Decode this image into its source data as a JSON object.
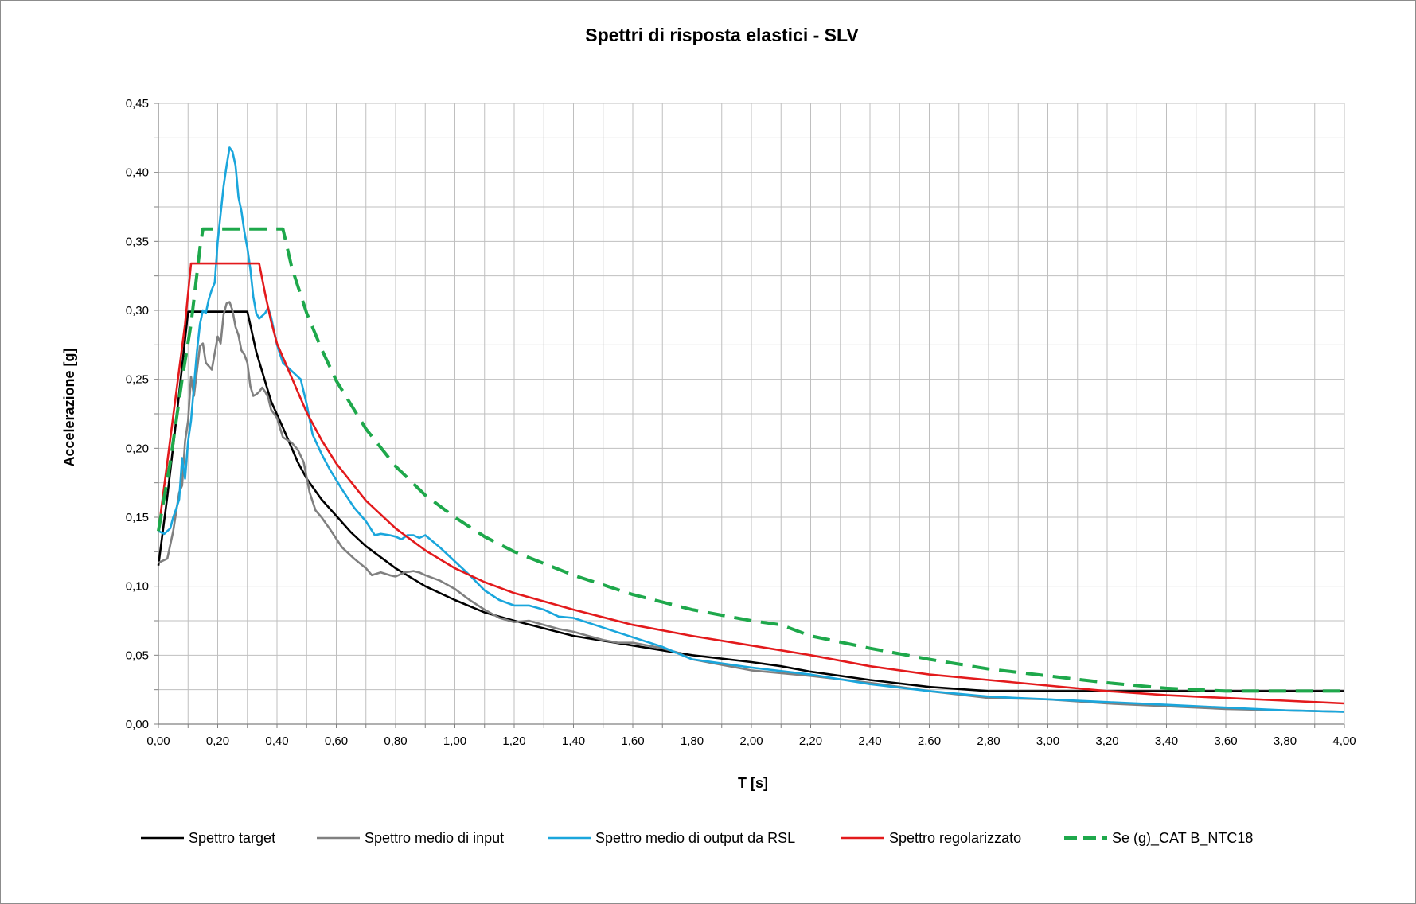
{
  "chart_data": {
    "type": "line",
    "title": "Spettri di risposta elastici  - SLV",
    "xlabel": "T [s]",
    "ylabel": "Accelerazione [g]",
    "xlim": [
      0,
      4
    ],
    "ylim": [
      0,
      0.45
    ],
    "x_ticks": [
      "0,00",
      "0,20",
      "0,40",
      "0,60",
      "0,80",
      "1,00",
      "1,20",
      "1,40",
      "1,60",
      "1,80",
      "2,00",
      "2,20",
      "2,40",
      "2,60",
      "2,80",
      "3,00",
      "3,20",
      "3,40",
      "3,60",
      "3,80",
      "4,00"
    ],
    "y_ticks": [
      "0,00",
      "0,05",
      "0,10",
      "0,15",
      "0,20",
      "0,25",
      "0,30",
      "0,35",
      "0,40",
      "0,45"
    ],
    "x_tick_values": [
      0,
      0.2,
      0.4,
      0.6,
      0.8,
      1.0,
      1.2,
      1.4,
      1.6,
      1.8,
      2.0,
      2.2,
      2.4,
      2.6,
      2.8,
      3.0,
      3.2,
      3.4,
      3.6,
      3.8,
      4.0
    ],
    "y_tick_values": [
      0,
      0.05,
      0.1,
      0.15,
      0.2,
      0.25,
      0.3,
      0.35,
      0.4,
      0.45
    ],
    "grid": true,
    "legend_position": "bottom",
    "series": [
      {
        "name": "Spettro target",
        "color": "#000000",
        "dash": "solid",
        "x": [
          0.0,
          0.03,
          0.06,
          0.1,
          0.3,
          0.33,
          0.38,
          0.42,
          0.47,
          0.5,
          0.55,
          0.6,
          0.65,
          0.7,
          0.8,
          0.9,
          1.0,
          1.1,
          1.2,
          1.4,
          1.6,
          1.8,
          2.0,
          2.1,
          2.2,
          2.4,
          2.6,
          2.8,
          3.0,
          3.2,
          3.4,
          3.6,
          3.8,
          4.0
        ],
        "y": [
          0.115,
          0.165,
          0.22,
          0.299,
          0.299,
          0.27,
          0.234,
          0.215,
          0.19,
          0.178,
          0.163,
          0.151,
          0.139,
          0.129,
          0.113,
          0.1,
          0.09,
          0.081,
          0.075,
          0.064,
          0.057,
          0.05,
          0.045,
          0.042,
          0.038,
          0.032,
          0.027,
          0.024,
          0.024,
          0.024,
          0.024,
          0.024,
          0.024,
          0.024
        ]
      },
      {
        "name": "Spettro medio di input",
        "color": "#808080",
        "dash": "solid",
        "x": [
          0.0,
          0.03,
          0.05,
          0.07,
          0.08,
          0.09,
          0.1,
          0.11,
          0.12,
          0.13,
          0.14,
          0.15,
          0.16,
          0.18,
          0.2,
          0.21,
          0.22,
          0.23,
          0.24,
          0.25,
          0.26,
          0.27,
          0.28,
          0.29,
          0.3,
          0.31,
          0.32,
          0.33,
          0.34,
          0.35,
          0.36,
          0.37,
          0.38,
          0.4,
          0.42,
          0.45,
          0.47,
          0.49,
          0.51,
          0.53,
          0.55,
          0.58,
          0.62,
          0.66,
          0.7,
          0.72,
          0.75,
          0.78,
          0.8,
          0.83,
          0.86,
          0.88,
          0.9,
          0.95,
          1.0,
          1.05,
          1.1,
          1.15,
          1.2,
          1.25,
          1.3,
          1.35,
          1.4,
          1.45,
          1.5,
          1.55,
          1.6,
          1.65,
          1.7,
          1.75,
          1.8,
          1.9,
          2.0,
          2.2,
          2.4,
          2.6,
          2.8,
          3.0,
          3.2,
          3.4,
          3.6,
          3.8,
          4.0
        ],
        "y": [
          0.117,
          0.12,
          0.14,
          0.168,
          0.173,
          0.205,
          0.22,
          0.252,
          0.238,
          0.256,
          0.274,
          0.276,
          0.262,
          0.257,
          0.281,
          0.276,
          0.297,
          0.305,
          0.306,
          0.3,
          0.288,
          0.282,
          0.271,
          0.268,
          0.262,
          0.245,
          0.238,
          0.239,
          0.241,
          0.244,
          0.241,
          0.237,
          0.228,
          0.222,
          0.208,
          0.204,
          0.199,
          0.19,
          0.168,
          0.155,
          0.15,
          0.141,
          0.128,
          0.12,
          0.113,
          0.108,
          0.11,
          0.108,
          0.107,
          0.11,
          0.111,
          0.11,
          0.108,
          0.104,
          0.098,
          0.09,
          0.083,
          0.077,
          0.074,
          0.075,
          0.072,
          0.069,
          0.067,
          0.064,
          0.061,
          0.059,
          0.059,
          0.057,
          0.055,
          0.052,
          0.047,
          0.043,
          0.039,
          0.035,
          0.03,
          0.024,
          0.019,
          0.018,
          0.015,
          0.013,
          0.011,
          0.01,
          0.009
        ]
      },
      {
        "name": "Spettro medio di output da RSL",
        "color": "#1aa6dc",
        "dash": "solid",
        "x": [
          0.0,
          0.02,
          0.04,
          0.05,
          0.06,
          0.07,
          0.08,
          0.09,
          0.1,
          0.11,
          0.12,
          0.13,
          0.14,
          0.15,
          0.16,
          0.17,
          0.18,
          0.19,
          0.2,
          0.21,
          0.22,
          0.23,
          0.24,
          0.25,
          0.26,
          0.27,
          0.28,
          0.29,
          0.3,
          0.31,
          0.32,
          0.33,
          0.34,
          0.35,
          0.36,
          0.37,
          0.38,
          0.4,
          0.42,
          0.45,
          0.48,
          0.5,
          0.52,
          0.55,
          0.58,
          0.62,
          0.66,
          0.7,
          0.73,
          0.75,
          0.78,
          0.8,
          0.82,
          0.84,
          0.86,
          0.88,
          0.9,
          0.95,
          1.0,
          1.05,
          1.1,
          1.15,
          1.2,
          1.25,
          1.3,
          1.35,
          1.4,
          1.5,
          1.6,
          1.7,
          1.8,
          1.9,
          2.0,
          2.2,
          2.4,
          2.6,
          2.8,
          3.0,
          3.2,
          3.4,
          3.6,
          3.8,
          4.0
        ],
        "y": [
          0.14,
          0.138,
          0.142,
          0.15,
          0.156,
          0.163,
          0.193,
          0.178,
          0.205,
          0.22,
          0.245,
          0.27,
          0.29,
          0.3,
          0.298,
          0.308,
          0.315,
          0.32,
          0.35,
          0.37,
          0.39,
          0.405,
          0.418,
          0.415,
          0.405,
          0.382,
          0.372,
          0.357,
          0.345,
          0.33,
          0.31,
          0.298,
          0.294,
          0.296,
          0.298,
          0.302,
          0.295,
          0.275,
          0.262,
          0.256,
          0.25,
          0.232,
          0.21,
          0.196,
          0.184,
          0.17,
          0.157,
          0.147,
          0.137,
          0.138,
          0.137,
          0.136,
          0.134,
          0.137,
          0.137,
          0.135,
          0.137,
          0.128,
          0.118,
          0.108,
          0.097,
          0.09,
          0.086,
          0.086,
          0.083,
          0.078,
          0.077,
          0.07,
          0.063,
          0.056,
          0.047,
          0.044,
          0.041,
          0.036,
          0.029,
          0.024,
          0.02,
          0.018,
          0.016,
          0.014,
          0.012,
          0.01,
          0.009
        ]
      },
      {
        "name": "Spettro regolarizzato",
        "color": "#e31a1c",
        "dash": "solid",
        "x": [
          0.0,
          0.03,
          0.06,
          0.09,
          0.11,
          0.34,
          0.36,
          0.38,
          0.4,
          0.45,
          0.5,
          0.55,
          0.6,
          0.7,
          0.8,
          0.9,
          1.0,
          1.1,
          1.2,
          1.4,
          1.6,
          1.8,
          2.0,
          2.2,
          2.4,
          2.6,
          2.8,
          3.0,
          3.2,
          3.4,
          3.6,
          3.8,
          4.0
        ],
        "y": [
          0.14,
          0.19,
          0.24,
          0.29,
          0.334,
          0.334,
          0.312,
          0.292,
          0.276,
          0.251,
          0.226,
          0.206,
          0.189,
          0.162,
          0.142,
          0.126,
          0.113,
          0.103,
          0.095,
          0.083,
          0.072,
          0.064,
          0.057,
          0.05,
          0.042,
          0.036,
          0.032,
          0.028,
          0.024,
          0.021,
          0.019,
          0.017,
          0.015
        ]
      },
      {
        "name": "Se (g)_CAT B_NTC18",
        "color": "#1ea84b",
        "dash": "dashed",
        "x": [
          0.0,
          0.04,
          0.08,
          0.11,
          0.14,
          0.15,
          0.42,
          0.45,
          0.5,
          0.55,
          0.6,
          0.7,
          0.8,
          0.9,
          1.0,
          1.1,
          1.2,
          1.4,
          1.6,
          1.8,
          2.0,
          2.1,
          2.2,
          2.4,
          2.6,
          2.8,
          3.0,
          3.2,
          3.4,
          3.6,
          3.7,
          3.8,
          4.0
        ],
        "y": [
          0.14,
          0.19,
          0.25,
          0.29,
          0.345,
          0.359,
          0.359,
          0.331,
          0.298,
          0.272,
          0.249,
          0.214,
          0.187,
          0.166,
          0.15,
          0.136,
          0.125,
          0.108,
          0.094,
          0.083,
          0.075,
          0.072,
          0.064,
          0.055,
          0.047,
          0.04,
          0.035,
          0.03,
          0.026,
          0.024,
          0.024,
          0.024,
          0.024
        ]
      }
    ]
  }
}
